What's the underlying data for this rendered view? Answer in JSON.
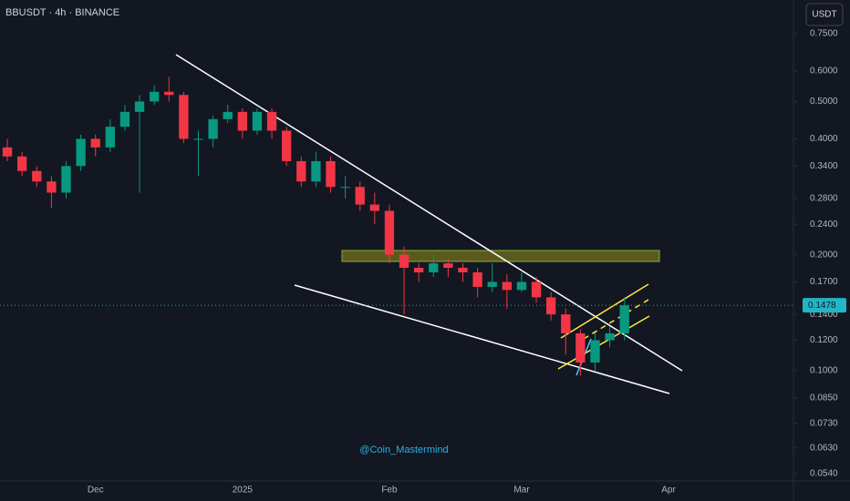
{
  "chart_data": {
    "type": "candlestick",
    "title": "BBUSDT · 4h · BINANCE",
    "currency": "USDT",
    "annotation": "@Coin_Mastermind",
    "last_price": 0.1478,
    "log_scale": true,
    "grid": false,
    "up_color": "#089981",
    "down_color": "#f23645",
    "ylim": [
      0.0517,
      0.9176
    ],
    "yticks": [
      {
        "value": 0.75,
        "label": "0.7500"
      },
      {
        "value": 0.6,
        "label": "0.6000"
      },
      {
        "value": 0.5,
        "label": "0.5000"
      },
      {
        "value": 0.4,
        "label": "0.4000"
      },
      {
        "value": 0.34,
        "label": "0.3400"
      },
      {
        "value": 0.28,
        "label": "0.2800"
      },
      {
        "value": 0.24,
        "label": "0.2400"
      },
      {
        "value": 0.2,
        "label": "0.2000"
      },
      {
        "value": 0.17,
        "label": "0.1700"
      },
      {
        "value": 0.14,
        "label": "0.1400"
      },
      {
        "value": 0.12,
        "label": "0.1200"
      },
      {
        "value": 0.1,
        "label": "0.1000"
      },
      {
        "value": 0.085,
        "label": "0.0850"
      },
      {
        "value": 0.073,
        "label": "0.0730"
      },
      {
        "value": 0.063,
        "label": "0.0630"
      },
      {
        "value": 0.054,
        "label": "0.0540"
      }
    ],
    "categories": [
      null,
      null,
      null,
      null,
      null,
      null,
      "Dec",
      null,
      null,
      null,
      null,
      null,
      null,
      null,
      null,
      null,
      "2025",
      null,
      null,
      null,
      null,
      null,
      null,
      null,
      null,
      null,
      "Feb",
      null,
      null,
      null,
      null,
      null,
      null,
      null,
      null,
      "Mar",
      null,
      null,
      null,
      null,
      null,
      null,
      null,
      null,
      null,
      "Apr",
      null,
      null,
      null,
      null,
      null,
      null,
      null,
      null
    ],
    "open": [
      0.38,
      0.36,
      0.33,
      0.31,
      0.29,
      0.34,
      0.4,
      0.38,
      0.43,
      0.47,
      0.5,
      0.53,
      0.52,
      0.4,
      0.4,
      0.45,
      0.47,
      0.42,
      0.47,
      0.42,
      0.35,
      0.31,
      0.35,
      0.3,
      0.3,
      0.27,
      0.26,
      0.2,
      0.185,
      0.18,
      0.19,
      0.185,
      0.18,
      0.165,
      0.17,
      0.162,
      0.17,
      0.155,
      0.14,
      0.125,
      0.105,
      0.12,
      0.125,
      null,
      null,
      null,
      null,
      null,
      null,
      null,
      null,
      null,
      null,
      null
    ],
    "high": [
      0.4,
      0.37,
      0.34,
      0.32,
      0.35,
      0.41,
      0.41,
      0.45,
      0.49,
      0.52,
      0.55,
      0.58,
      0.53,
      0.42,
      0.46,
      0.49,
      0.48,
      0.48,
      0.48,
      0.43,
      0.36,
      0.37,
      0.36,
      0.32,
      0.31,
      0.29,
      0.27,
      0.21,
      0.19,
      0.2,
      0.195,
      0.19,
      0.185,
      0.19,
      0.178,
      0.18,
      0.175,
      0.16,
      0.145,
      0.128,
      0.125,
      0.13,
      0.155,
      null,
      null,
      null,
      null,
      null,
      null,
      null,
      null,
      null,
      null,
      null
    ],
    "low": [
      0.35,
      0.32,
      0.3,
      0.265,
      0.28,
      0.33,
      0.36,
      0.37,
      0.42,
      0.29,
      0.49,
      0.5,
      0.39,
      0.32,
      0.38,
      0.44,
      0.4,
      0.41,
      0.4,
      0.34,
      0.3,
      0.3,
      0.29,
      0.28,
      0.26,
      0.24,
      0.19,
      0.14,
      0.17,
      0.175,
      0.175,
      0.17,
      0.155,
      0.16,
      0.145,
      0.16,
      0.15,
      0.135,
      0.11,
      0.097,
      0.1,
      0.115,
      0.12,
      null,
      null,
      null,
      null,
      null,
      null,
      null,
      null,
      null,
      null,
      null
    ],
    "close": [
      0.36,
      0.33,
      0.31,
      0.29,
      0.34,
      0.4,
      0.38,
      0.43,
      0.47,
      0.5,
      0.53,
      0.52,
      0.4,
      0.4,
      0.45,
      0.47,
      0.42,
      0.47,
      0.42,
      0.35,
      0.31,
      0.35,
      0.3,
      0.3,
      0.27,
      0.26,
      0.2,
      0.185,
      0.18,
      0.19,
      0.185,
      0.18,
      0.165,
      0.17,
      0.162,
      0.17,
      0.155,
      0.14,
      0.125,
      0.105,
      0.12,
      0.125,
      0.1478,
      null,
      null,
      null,
      null,
      null,
      null,
      null,
      null,
      null,
      null,
      null
    ]
  }
}
